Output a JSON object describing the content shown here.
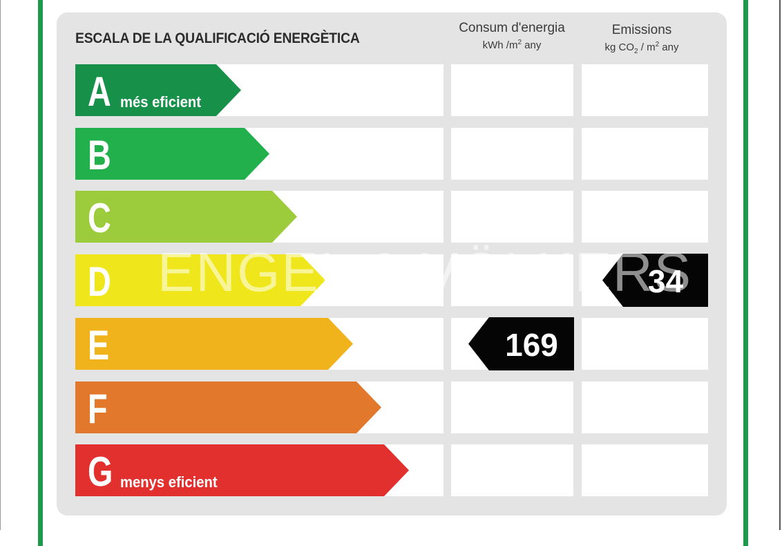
{
  "document": {
    "title": "ESCALA DE LA QUALIFICACIÓ ENERGÈTICA",
    "columns": {
      "consumption": {
        "label": "Consum d'energia",
        "unit_prefix": "kWh /m",
        "unit_power": "2",
        "unit_suffix": " any"
      },
      "emissions": {
        "label": "Emissions",
        "unit_prefix": "kg CO",
        "unit_sub": "2",
        "unit_mid": " / m",
        "unit_power": "2",
        "unit_suffix": "  any"
      }
    },
    "classes": [
      {
        "letter": "A",
        "note": "més eficient",
        "color": "#17914a"
      },
      {
        "letter": "B",
        "note": "",
        "color": "#21b04b"
      },
      {
        "letter": "C",
        "note": "",
        "color": "#9ccb3b"
      },
      {
        "letter": "D",
        "note": "",
        "color": "#f0e61c"
      },
      {
        "letter": "E",
        "note": "",
        "color": "#f0b31c"
      },
      {
        "letter": "F",
        "note": "",
        "color": "#e1782b"
      },
      {
        "letter": "G",
        "note": "menys eficient",
        "color": "#e2302e"
      }
    ],
    "rating": {
      "consumption": {
        "class": "E",
        "value": "169"
      },
      "emissions": {
        "class": "D",
        "value": "34"
      }
    },
    "watermark": "ENGEL & VÖLKERS"
  }
}
